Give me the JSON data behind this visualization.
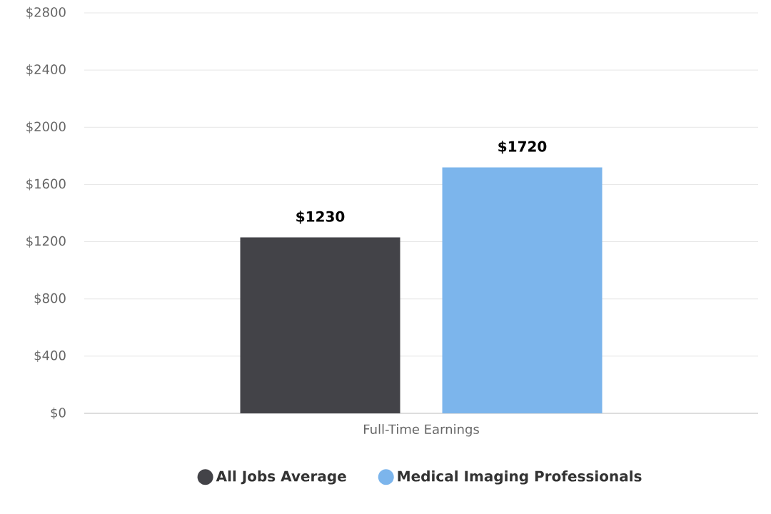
{
  "chart_data": {
    "type": "bar",
    "categories": [
      "Full-Time Earnings"
    ],
    "series": [
      {
        "name": "All Jobs Average",
        "color": "#434348",
        "values": [
          1230
        ],
        "value_labels": [
          "$1230"
        ]
      },
      {
        "name": "Medical Imaging Professionals",
        "color": "#7cb5ec",
        "values": [
          1720
        ],
        "value_labels": [
          "$1720"
        ]
      }
    ],
    "ylim": [
      0,
      2800
    ],
    "yticks": [
      {
        "value": 0,
        "label": "$0"
      },
      {
        "value": 400,
        "label": "$400"
      },
      {
        "value": 800,
        "label": "$800"
      },
      {
        "value": 1200,
        "label": "$1200"
      },
      {
        "value": 1600,
        "label": "$1600"
      },
      {
        "value": 2000,
        "label": "$2000"
      },
      {
        "value": 2400,
        "label": "$2400"
      },
      {
        "value": 2800,
        "label": "$2800"
      }
    ],
    "grid": "y",
    "legend": "bottom"
  }
}
